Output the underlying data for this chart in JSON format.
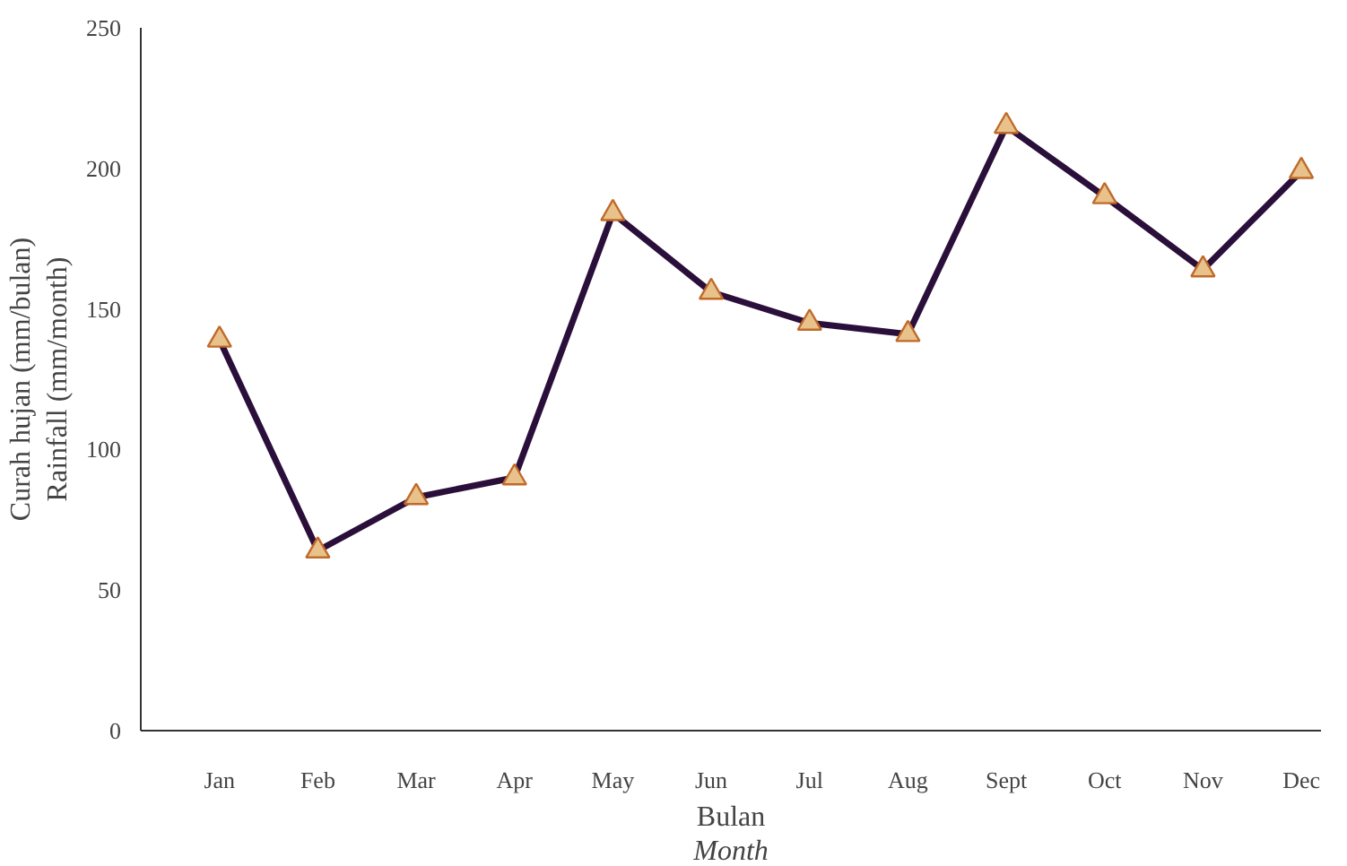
{
  "chart_data": {
    "type": "line",
    "xlabel": "Bulan\nMonth",
    "ylabel": "Curah hujan (mm/bulan)\nRainfall (mm/month)",
    "categories": [
      "Jan",
      "Feb",
      "Mar",
      "Apr",
      "May",
      "Jun",
      "Jul",
      "Aug",
      "Sept",
      "Oct",
      "Nov",
      "Dec"
    ],
    "series": [
      {
        "color": "#2a0f3a",
        "values": [
          139,
          64,
          83,
          90,
          184,
          156,
          145,
          141,
          215,
          190,
          164,
          199
        ]
      }
    ],
    "ylim": [
      0,
      250
    ],
    "yticks": [
      0,
      50,
      100,
      150,
      200,
      250
    ],
    "grid": false,
    "marker": "triangle",
    "line_style": "solid"
  }
}
